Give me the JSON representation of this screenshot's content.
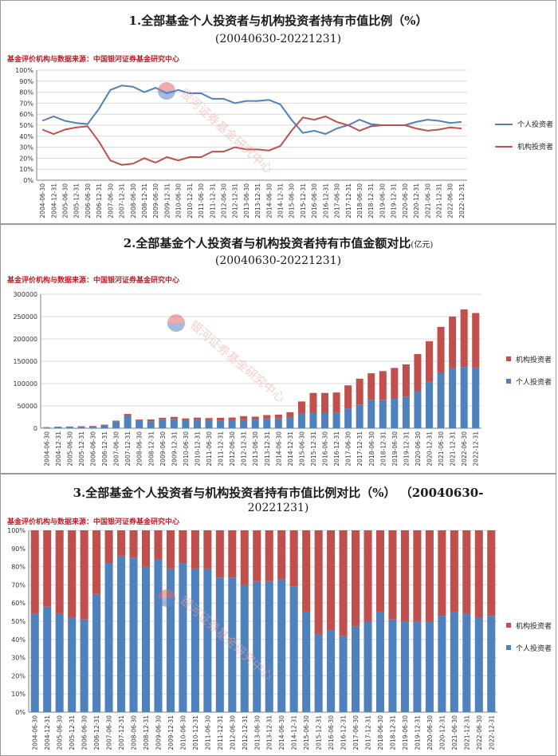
{
  "source_note": "基金评价机构与数据来源：中国银河证券基金研究中心",
  "watermark": "银河证券基金研究中心",
  "colors": {
    "individual": "#4f81bd",
    "institution": "#c0504d",
    "grid": "#d9d9d9",
    "axis": "#7f7f7f"
  },
  "chart_data": [
    {
      "type": "line",
      "title_line1": "1.全部基金个人投资者与机构投资者持有市值比例（%）",
      "title_line2": "(20040630-20221231)",
      "x": [
        "2004-06-30",
        "2004-12-31",
        "2005-06-30",
        "2005-12-31",
        "2006-06-30",
        "2006-12-31",
        "2007-06-30",
        "2007-12-31",
        "2008-06-30",
        "2008-12-31",
        "2009-06-30",
        "2009-12-31",
        "2010-06-30",
        "2010-12-31",
        "2011-06-30",
        "2011-12-31",
        "2012-06-30",
        "2012-12-31",
        "2013-06-30",
        "2013-12-31",
        "2014-06-30",
        "2014-12-31",
        "2015-06-30",
        "2015-12-31",
        "2016-06-30",
        "2016-12-31",
        "2017-06-30",
        "2017-12-31",
        "2018-06-30",
        "2018-12-31",
        "2019-06-30",
        "2019-12-31",
        "2020-06-30",
        "2020-12-31",
        "2021-06-30",
        "2021-12-31",
        "2022-06-30",
        "2022-12-31"
      ],
      "series": [
        {
          "name": "个人投资者",
          "values": [
            54,
            58,
            54,
            52,
            51,
            65,
            82,
            86,
            85,
            80,
            84,
            79,
            82,
            79,
            79,
            74,
            74,
            70,
            72,
            72,
            73,
            69,
            55,
            43,
            45,
            42,
            47,
            50,
            55,
            51,
            50,
            50,
            50,
            53,
            55,
            54,
            52,
            53
          ]
        },
        {
          "name": "机构投资者",
          "values": [
            46,
            42,
            46,
            48,
            49,
            35,
            18,
            14,
            15,
            20,
            16,
            21,
            18,
            21,
            21,
            26,
            26,
            30,
            28,
            28,
            27,
            31,
            45,
            57,
            55,
            58,
            53,
            50,
            45,
            49,
            50,
            50,
            50,
            47,
            45,
            46,
            48,
            47
          ]
        }
      ],
      "y_ticks": [
        "0%",
        "10%",
        "20%",
        "30%",
        "40%",
        "50%",
        "60%",
        "70%",
        "80%",
        "90%",
        "100%"
      ],
      "ylim": [
        0,
        100
      ]
    },
    {
      "type": "bar",
      "stacked": true,
      "title_line1": "2.全部基金个人投资者与机构投资者持有市值金额对比",
      "title_unit": "(亿元)",
      "title_line2": "(20040630-20221231)",
      "x": [
        "2004-06-30",
        "2004-12-31",
        "2005-06-30",
        "2005-12-31",
        "2006-06-30",
        "2006-12-31",
        "2007-06-30",
        "2007-12-31",
        "2008-06-30",
        "2008-12-31",
        "2009-06-30",
        "2009-12-31",
        "2010-06-30",
        "2010-12-31",
        "2011-06-30",
        "2011-12-31",
        "2012-06-30",
        "2012-12-31",
        "2013-06-30",
        "2013-12-31",
        "2014-06-30",
        "2014-12-31",
        "2015-06-30",
        "2015-12-31",
        "2016-06-30",
        "2016-12-31",
        "2017-06-30",
        "2017-12-31",
        "2018-06-30",
        "2018-12-31",
        "2019-06-30",
        "2019-12-31",
        "2020-06-30",
        "2020-12-31",
        "2021-06-30",
        "2021-12-31",
        "2022-06-30",
        "2022-12-31"
      ],
      "series": [
        {
          "name": "个人投资者",
          "values": [
            1400,
            1900,
            2100,
            2400,
            2800,
            5500,
            15500,
            27000,
            16500,
            15500,
            20000,
            21000,
            18000,
            19000,
            18000,
            17500,
            18000,
            18500,
            19500,
            21000,
            22000,
            25000,
            33000,
            34000,
            34000,
            35000,
            44000,
            53000,
            63000,
            64000,
            66000,
            71000,
            83000,
            104000,
            125000,
            135000,
            137000,
            136000
          ]
        },
        {
          "name": "机构投资者",
          "values": [
            1100,
            1600,
            1800,
            2100,
            2200,
            2500,
            1500,
            5000,
            3000,
            4200,
            3500,
            4500,
            4000,
            4800,
            4700,
            6000,
            6000,
            8500,
            6500,
            8500,
            8500,
            11000,
            27000,
            45000,
            45000,
            45000,
            52000,
            58000,
            60000,
            64000,
            69000,
            72000,
            83000,
            91000,
            102000,
            115000,
            129000,
            122000
          ]
        }
      ],
      "y_ticks": [
        "0",
        "50000",
        "100000",
        "150000",
        "200000",
        "250000",
        "300000"
      ],
      "ylim": [
        0,
        300000
      ]
    },
    {
      "type": "bar",
      "stacked": true,
      "title_line1": "3.全部基金个人投资者与机构投资者持有市值比例对比（%） （20040630-",
      "title_line2": "20221231)",
      "x": [
        "2004-06-30",
        "2004-12-31",
        "2005-06-30",
        "2005-12-31",
        "2006-06-30",
        "2006-12-31",
        "2007-06-30",
        "2007-12-31",
        "2008-06-30",
        "2008-12-31",
        "2009-06-30",
        "2009-12-31",
        "2010-06-30",
        "2010-12-31",
        "2011-06-30",
        "2011-12-31",
        "2012-06-30",
        "2012-12-31",
        "2013-06-30",
        "2013-12-31",
        "2014-06-30",
        "2014-12-31",
        "2015-06-30",
        "2015-12-31",
        "2016-06-30",
        "2016-12-31",
        "2017-06-30",
        "2017-12-31",
        "2018-06-30",
        "2018-12-31",
        "2019-06-30",
        "2019-12-31",
        "2020-06-30",
        "2020-12-31",
        "2021-06-30",
        "2021-12-31",
        "2022-06-30",
        "2022-12-31"
      ],
      "series": [
        {
          "name": "个人投资者",
          "values": [
            54,
            58,
            54,
            52,
            51,
            65,
            82,
            86,
            85,
            80,
            84,
            79,
            82,
            79,
            79,
            74,
            74,
            70,
            72,
            72,
            73,
            69,
            55,
            43,
            45,
            42,
            47,
            50,
            55,
            51,
            50,
            50,
            50,
            53,
            55,
            54,
            52,
            53
          ]
        },
        {
          "name": "机构投资者",
          "values": [
            46,
            42,
            46,
            48,
            49,
            35,
            18,
            14,
            15,
            20,
            16,
            21,
            18,
            21,
            21,
            26,
            26,
            30,
            28,
            28,
            27,
            31,
            45,
            57,
            55,
            58,
            53,
            50,
            45,
            49,
            50,
            50,
            50,
            47,
            45,
            46,
            48,
            47
          ]
        }
      ],
      "y_ticks": [
        "0%",
        "10%",
        "20%",
        "30%",
        "40%",
        "50%",
        "60%",
        "70%",
        "80%",
        "90%",
        "100%"
      ],
      "ylim": [
        0,
        100
      ]
    }
  ]
}
